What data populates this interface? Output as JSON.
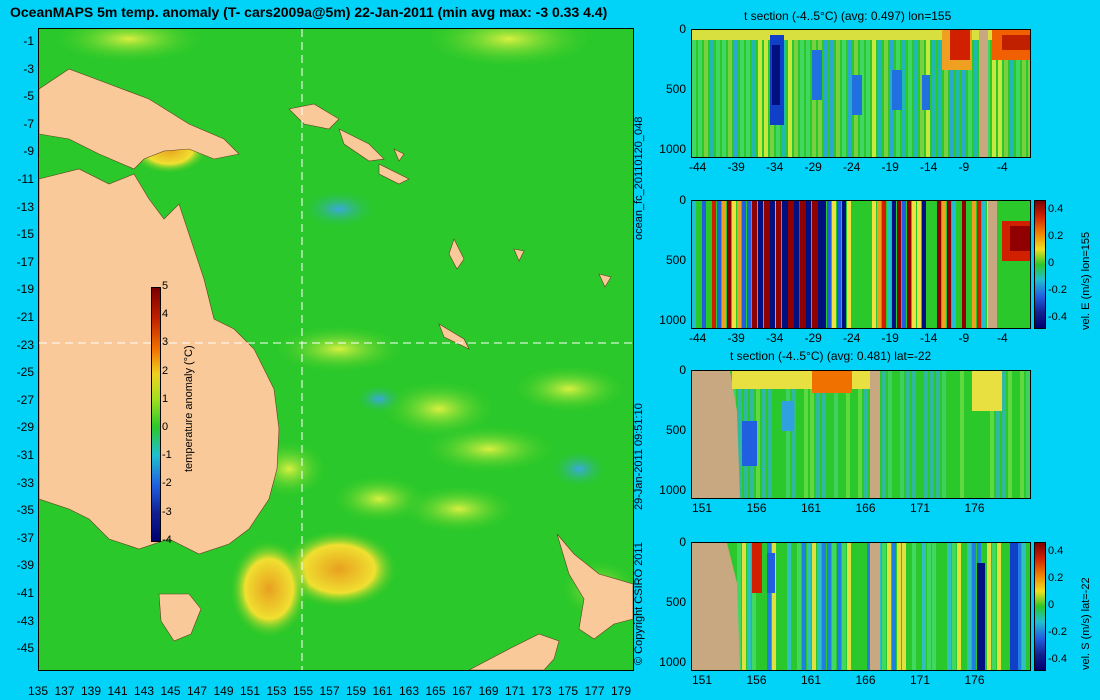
{
  "map": {
    "title": "OceanMAPS 5m temp. anomaly (T- cars2009a@5m) 22-Jan-2011 (min avg max: -3 0.33 4.4)",
    "lat_ticks": [
      "-1",
      "-3",
      "-5",
      "-7",
      "-9",
      "-11",
      "-13",
      "-15",
      "-17",
      "-19",
      "-21",
      "-23",
      "-25",
      "-27",
      "-29",
      "-31",
      "-33",
      "-35",
      "-37",
      "-39",
      "-41",
      "-43",
      "-45"
    ],
    "lon_ticks": [
      "135",
      "137",
      "139",
      "141",
      "143",
      "145",
      "147",
      "149",
      "151",
      "153",
      "155",
      "157",
      "159",
      "161",
      "163",
      "165",
      "167",
      "169",
      "171",
      "173",
      "175",
      "177",
      "179"
    ],
    "colorbar": {
      "label": "temperature anomaly (°C)",
      "ticks": [
        "5",
        "4",
        "3",
        "2",
        "1",
        "0",
        "-1",
        "-2",
        "-3",
        "-4"
      ]
    },
    "colors": {
      "ocean": "#2ac82a",
      "land": "#f9c99a",
      "background": "#00d2f8"
    }
  },
  "side_text": {
    "left": "ocean_fc_20110120_048",
    "left2": "29-Jan-2011 09:51:10",
    "left3": "© Copyright CSIRO 2011"
  },
  "panels": [
    {
      "title": "t section (-4..5°C) (avg: 0.497) lon=155",
      "yticks": [
        "0",
        "500",
        "1000"
      ],
      "xticks": [
        "-44",
        "-39",
        "-34",
        "-29",
        "-24",
        "-19",
        "-14",
        "-9",
        "-4"
      ],
      "cbar_label": "",
      "cbar_ticks": []
    },
    {
      "title": "",
      "yticks": [
        "0",
        "500",
        "1000"
      ],
      "xticks": [
        "-44",
        "-39",
        "-34",
        "-29",
        "-24",
        "-19",
        "-14",
        "-9",
        "-4"
      ],
      "cbar_label": "vel. E (m/s) lon=155",
      "cbar_ticks": [
        "0.4",
        "0.2",
        "0",
        "-0.2",
        "-0.4"
      ]
    },
    {
      "title": "t section (-4..5°C) (avg: 0.481) lat=-22",
      "yticks": [
        "0",
        "500",
        "1000"
      ],
      "xticks": [
        "151",
        "156",
        "161",
        "166",
        "171",
        "176"
      ],
      "cbar_label": "",
      "cbar_ticks": []
    },
    {
      "title": "",
      "yticks": [
        "0",
        "500",
        "1000"
      ],
      "xticks": [
        "151",
        "156",
        "161",
        "166",
        "171",
        "176"
      ],
      "cbar_label": "vel. S (m/s) lat=-22",
      "cbar_ticks": [
        "0.4",
        "0.2",
        "0",
        "-0.2",
        "-0.4"
      ]
    }
  ]
}
